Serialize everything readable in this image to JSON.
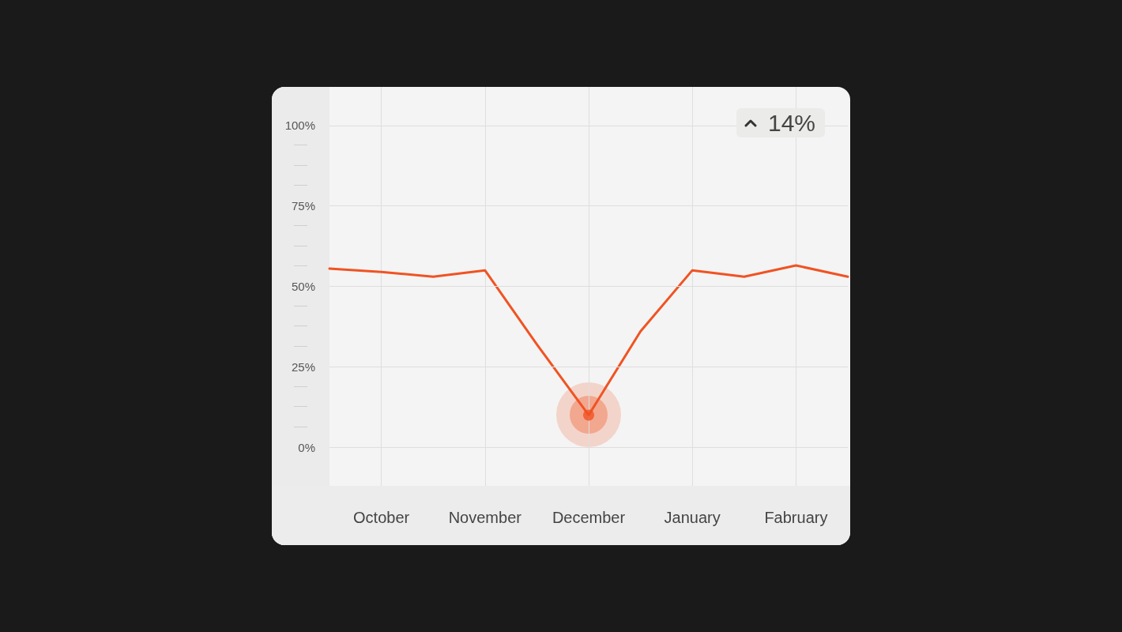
{
  "chart_data": {
    "type": "line",
    "categories": [
      null,
      "October",
      null,
      "November",
      null,
      "December",
      null,
      "January",
      null,
      "Fabruary",
      null
    ],
    "ylim": [
      -12,
      112
    ],
    "yticks": [
      {
        "value": 0,
        "label": "0%"
      },
      {
        "value": 25,
        "label": "25%"
      },
      {
        "value": 50,
        "label": "50%"
      },
      {
        "value": 75,
        "label": "75%"
      },
      {
        "value": 100,
        "label": "100%"
      }
    ],
    "series": [
      {
        "color": "#f05323",
        "values": [
          55.5,
          54.5,
          53,
          55,
          32,
          10,
          36,
          55,
          53,
          56.5,
          53
        ]
      },
      {
        "type": "scatter",
        "marker": "circle",
        "color": "#f05323",
        "x": [
          "December"
        ],
        "values": [
          10
        ]
      }
    ],
    "marker": "none",
    "line_style": "solid",
    "grid": true,
    "annotations": [
      "14%"
    ]
  }
}
